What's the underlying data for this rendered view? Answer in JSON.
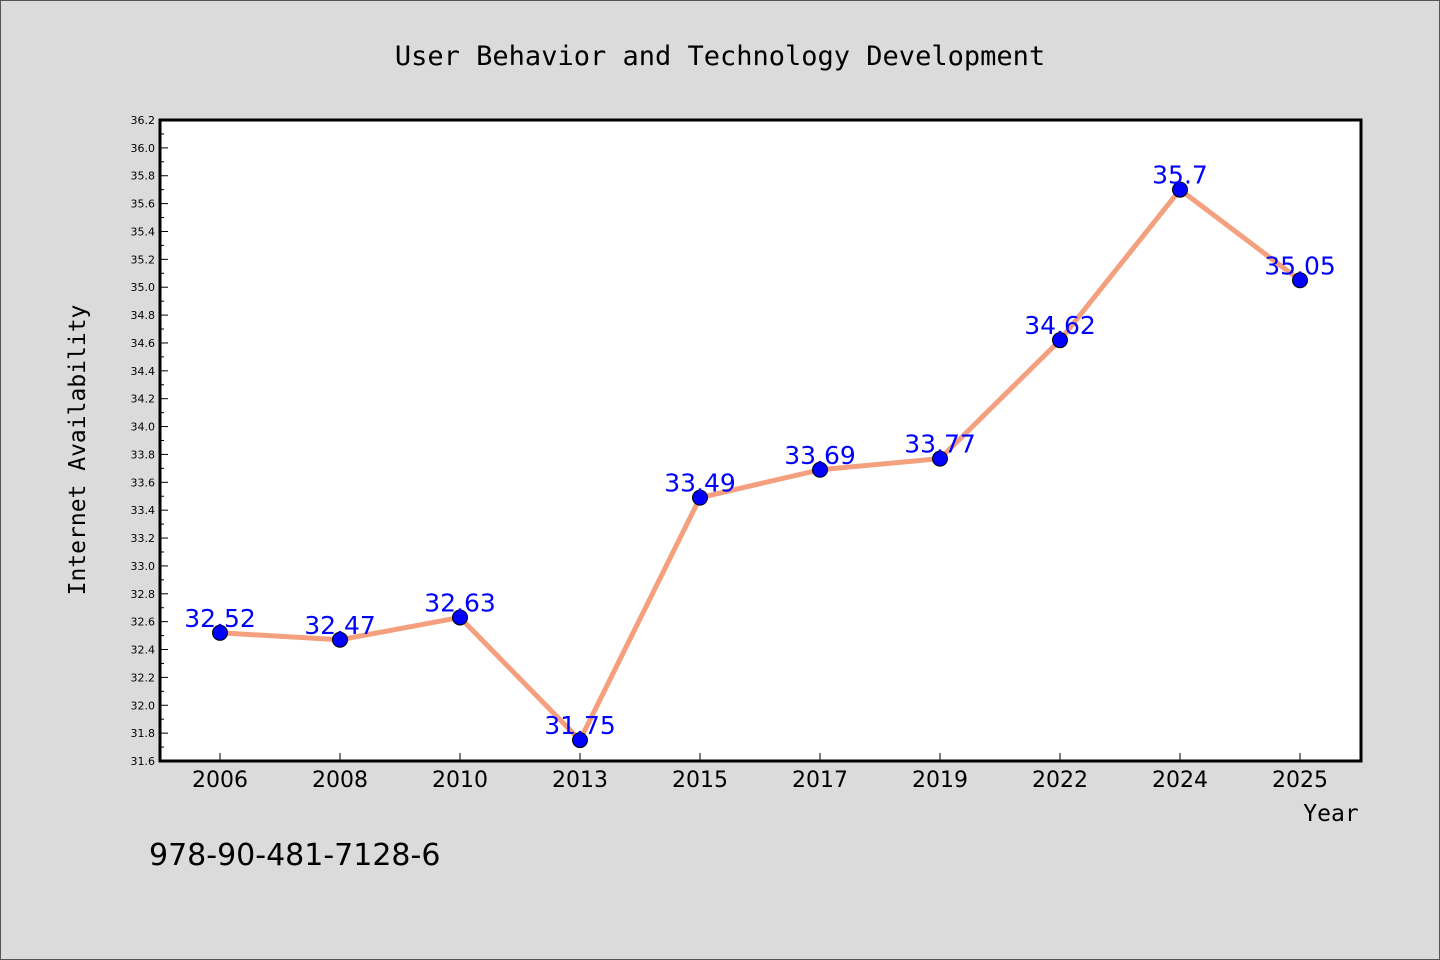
{
  "chart_data": {
    "type": "line",
    "title": "User Behavior and Technology Development",
    "xlabel": "Year",
    "ylabel": "Internet Availability",
    "categories": [
      "2006",
      "2008",
      "2010",
      "2013",
      "2015",
      "2017",
      "2019",
      "2022",
      "2024",
      "2025"
    ],
    "series": [
      {
        "values": [
          32.52,
          32.47,
          32.63,
          31.75,
          33.49,
          33.69,
          33.77,
          34.62,
          35.7,
          35.05
        ],
        "labels": [
          "32.52",
          "32.47",
          "32.63",
          "31.75",
          "33.49",
          "33.69",
          "33.77",
          "34.62",
          "35.7",
          "35.05"
        ]
      }
    ],
    "ylim": [
      31.6,
      36.2
    ],
    "yticks": [
      "31.6",
      "31.8",
      "32.0",
      "32.2",
      "32.4",
      "32.6",
      "32.8",
      "33.0",
      "33.2",
      "33.4",
      "33.6",
      "33.8",
      "34.0",
      "34.2",
      "34.4",
      "34.6",
      "34.8",
      "35.0",
      "35.2",
      "35.4",
      "35.6",
      "35.8",
      "36.0",
      "36.2"
    ],
    "grid": false,
    "legend": "none",
    "colors": {
      "line": "#f4a07e",
      "marker": "#0000ff",
      "label": "#0000ff",
      "background": "#dbdbdb",
      "plot_background": "#ffffff"
    }
  },
  "annotation": {
    "code": "978-90-481-7128-6"
  }
}
